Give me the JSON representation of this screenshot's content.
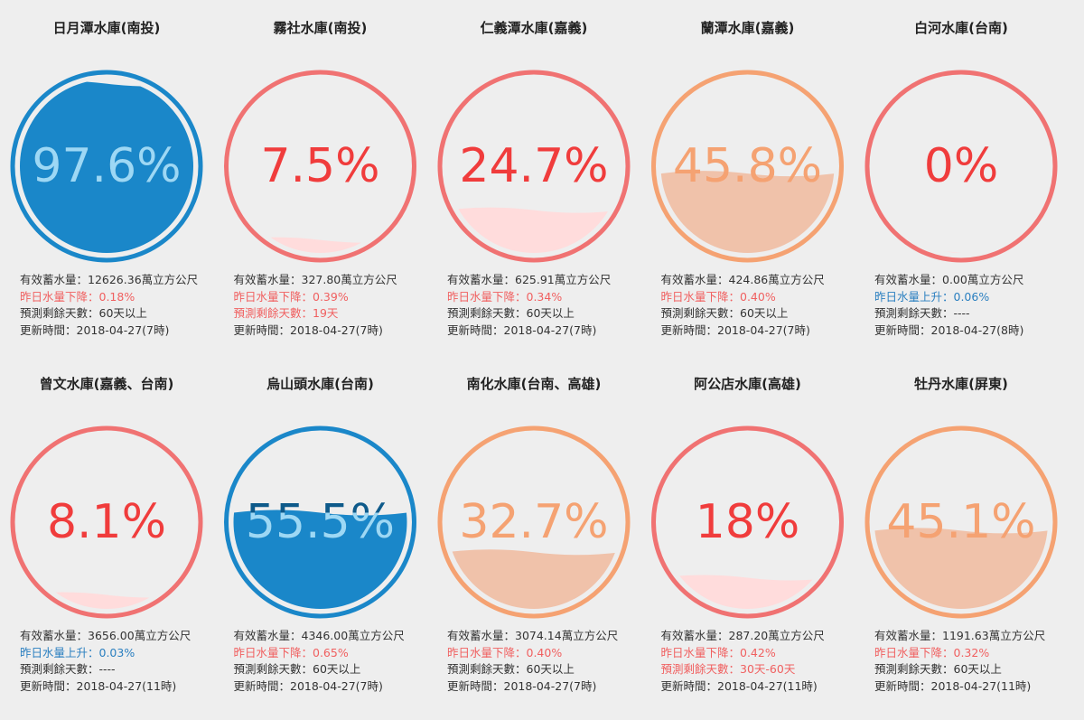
{
  "reservoirs": [
    {
      "name": "日月潭水庫(南投)",
      "percent": {
        "value": 97.6,
        "label": "97.6%"
      },
      "ring_color": "#1a87c9",
      "fill_color": "#1a87c9",
      "text_color": "#0e5a8a",
      "text_fill_color": "#9dd8f5",
      "lines": [
        {
          "text": "有效蓄水量：12626.36萬立方公尺",
          "color": "#333333"
        },
        {
          "text": "昨日水量下降：0.18%",
          "color": "#f06060"
        },
        {
          "text": "預測剩餘天數：60天以上",
          "color": "#333333"
        },
        {
          "text": "更新時間：2018-04-27(7時)",
          "color": "#333333"
        }
      ]
    },
    {
      "name": "霧社水庫(南投)",
      "percent": {
        "value": 7.5,
        "label": "7.5%"
      },
      "ring_color": "#f07272",
      "fill_color": "#ffdcdc",
      "text_color": "#f03c3c",
      "text_fill_color": "#f03c3c",
      "lines": [
        {
          "text": "有效蓄水量：327.80萬立方公尺",
          "color": "#333333"
        },
        {
          "text": "昨日水量下降：0.39%",
          "color": "#f06060"
        },
        {
          "text": "預測剩餘天數：19天",
          "color": "#f06060"
        },
        {
          "text": "更新時間：2018-04-27(7時)",
          "color": "#333333"
        }
      ]
    },
    {
      "name": "仁義潭水庫(嘉義)",
      "percent": {
        "value": 24.7,
        "label": "24.7%"
      },
      "ring_color": "#f07272",
      "fill_color": "#ffdcdc",
      "text_color": "#f03c3c",
      "text_fill_color": "#f03c3c",
      "lines": [
        {
          "text": "有效蓄水量：625.91萬立方公尺",
          "color": "#333333"
        },
        {
          "text": "昨日水量下降：0.34%",
          "color": "#f06060"
        },
        {
          "text": "預測剩餘天數：60天以上",
          "color": "#333333"
        },
        {
          "text": "更新時間：2018-04-27(7時)",
          "color": "#333333"
        }
      ]
    },
    {
      "name": "蘭潭水庫(嘉義)",
      "percent": {
        "value": 45.8,
        "label": "45.8%"
      },
      "ring_color": "#f5a272",
      "fill_color": "#f0c2aa",
      "text_color": "#f5a272",
      "text_fill_color": "#f5a272",
      "lines": [
        {
          "text": "有效蓄水量：424.86萬立方公尺",
          "color": "#333333"
        },
        {
          "text": "昨日水量下降：0.40%",
          "color": "#f06060"
        },
        {
          "text": "預測剩餘天數：60天以上",
          "color": "#333333"
        },
        {
          "text": "更新時間：2018-04-27(7時)",
          "color": "#333333"
        }
      ]
    },
    {
      "name": "白河水庫(台南)",
      "percent": {
        "value": 0,
        "label": "0%"
      },
      "ring_color": "#f07272",
      "fill_color": "#ffdcdc",
      "text_color": "#f03c3c",
      "text_fill_color": "#f03c3c",
      "lines": [
        {
          "text": "有效蓄水量：0.00萬立方公尺",
          "color": "#333333"
        },
        {
          "text": "昨日水量上升：0.06%",
          "color": "#2a7fc0"
        },
        {
          "text": "預測剩餘天數：----",
          "color": "#333333"
        },
        {
          "text": "更新時間：2018-04-27(8時)",
          "color": "#333333"
        }
      ]
    },
    {
      "name": "曾文水庫(嘉義、台南)",
      "percent": {
        "value": 8.1,
        "label": "8.1%"
      },
      "ring_color": "#f07272",
      "fill_color": "#ffdcdc",
      "text_color": "#f03c3c",
      "text_fill_color": "#f03c3c",
      "lines": [
        {
          "text": "有效蓄水量：3656.00萬立方公尺",
          "color": "#333333"
        },
        {
          "text": "昨日水量上升：0.03%",
          "color": "#2a7fc0"
        },
        {
          "text": "預測剩餘天數：----",
          "color": "#333333"
        },
        {
          "text": "更新時間：2018-04-27(11時)",
          "color": "#333333"
        }
      ]
    },
    {
      "name": "烏山頭水庫(台南)",
      "percent": {
        "value": 55.5,
        "label": "55.5%"
      },
      "ring_color": "#1a87c9",
      "fill_color": "#1a87c9",
      "text_color": "#0e5a8a",
      "text_fill_color": "#9dd8f5",
      "lines": [
        {
          "text": "有效蓄水量：4346.00萬立方公尺",
          "color": "#333333"
        },
        {
          "text": "昨日水量下降：0.65%",
          "color": "#f06060"
        },
        {
          "text": "預測剩餘天數：60天以上",
          "color": "#333333"
        },
        {
          "text": "更新時間：2018-04-27(7時)",
          "color": "#333333"
        }
      ]
    },
    {
      "name": "南化水庫(台南、高雄)",
      "percent": {
        "value": 32.7,
        "label": "32.7%"
      },
      "ring_color": "#f5a272",
      "fill_color": "#f0c2aa",
      "text_color": "#f5a272",
      "text_fill_color": "#f5a272",
      "lines": [
        {
          "text": "有效蓄水量：3074.14萬立方公尺",
          "color": "#333333"
        },
        {
          "text": "昨日水量下降：0.40%",
          "color": "#f06060"
        },
        {
          "text": "預測剩餘天數：60天以上",
          "color": "#333333"
        },
        {
          "text": "更新時間：2018-04-27(7時)",
          "color": "#333333"
        }
      ]
    },
    {
      "name": "阿公店水庫(高雄)",
      "percent": {
        "value": 18,
        "label": "18%"
      },
      "ring_color": "#f07272",
      "fill_color": "#ffdcdc",
      "text_color": "#f03c3c",
      "text_fill_color": "#f03c3c",
      "lines": [
        {
          "text": "有效蓄水量：287.20萬立方公尺",
          "color": "#333333"
        },
        {
          "text": "昨日水量下降：0.42%",
          "color": "#f06060"
        },
        {
          "text": "預測剩餘天數：30天-60天",
          "color": "#f06060"
        },
        {
          "text": "更新時間：2018-04-27(11時)",
          "color": "#333333"
        }
      ]
    },
    {
      "name": "牡丹水庫(屏東)",
      "percent": {
        "value": 45.1,
        "label": "45.1%"
      },
      "ring_color": "#f5a272",
      "fill_color": "#f0c2aa",
      "text_color": "#f5a272",
      "text_fill_color": "#f5a272",
      "lines": [
        {
          "text": "有效蓄水量：1191.63萬立方公尺",
          "color": "#333333"
        },
        {
          "text": "昨日水量下降：0.32%",
          "color": "#f06060"
        },
        {
          "text": "預測剩餘天數：60天以上",
          "color": "#333333"
        },
        {
          "text": "更新時間：2018-04-27(11時)",
          "color": "#333333"
        }
      ]
    }
  ]
}
